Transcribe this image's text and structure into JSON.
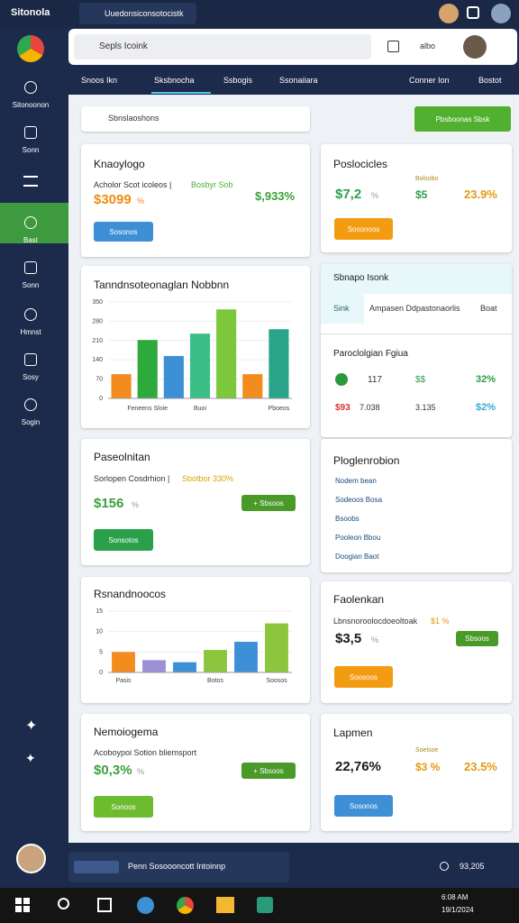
{
  "top_bar": {
    "app": "Sitonola",
    "tab": "Uuedonsiconsotocistk"
  },
  "header": {
    "search": "Sepls Icoink",
    "label": "albo"
  },
  "sidebar": [
    "Sitonoonon",
    "Sonn",
    "Bast",
    "Sonn",
    "Hmnst",
    "Sosy",
    "Sogin"
  ],
  "tabs": [
    "Snoos Ikn",
    "Sksbnocha",
    "Ssbogis",
    "Ssonaiiara",
    "Conner Ion",
    "Bostot"
  ],
  "toolbar": {
    "search": "Sbnslaoshons",
    "button": "Pbsboonas Sbsk"
  },
  "cards": [
    {
      "title": "Knaoylogo",
      "subtitle": "Acholor Scot icoleos |",
      "highlight": "Bosbyr Sob",
      "value": "$3099",
      "unit": "%",
      "side_value": "$,933%",
      "button": "Sosonos"
    },
    {
      "title": "Poslocicles",
      "label": "Bolsobo",
      "values": [
        "$7,2",
        "$5",
        "23.9%"
      ],
      "unit": "%",
      "button": "Sosonoos"
    },
    {
      "type": "bar",
      "title": "Tanndnsoteonaglan Nobbnn",
      "categories": [
        null,
        "Feneens Sloie",
        null,
        "Buoi",
        null,
        null,
        "Pboeos"
      ],
      "values": [
        88,
        212,
        154,
        235,
        323,
        88,
        251
      ],
      "colors": [
        "#f28c1e",
        "#2eaa3c",
        "#3d8fd6",
        "#3cbf86",
        "#7cc73a",
        "#f28c1e",
        "#2aa58a"
      ],
      "ylim": [
        0,
        350
      ],
      "yticks": [
        0,
        70,
        140,
        210,
        280,
        350
      ]
    },
    {
      "header": "Sbnapo Isonk",
      "tabs": [
        "Sink",
        "Ampasen Ddpastonaorlis",
        "Boat"
      ],
      "title": "Paroclolgian Fgiua",
      "rows": [
        [
          "117",
          "$$",
          "32%"
        ],
        [
          "$93",
          "7.038",
          "3.135",
          "$2%"
        ]
      ]
    },
    {
      "title": "Paseolnitan",
      "subtitle": "Sorlopen Cosdrhion |",
      "highlight": "Sbotbor 330%",
      "value": "$156",
      "unit": "%",
      "tag": "+ Sbsoos",
      "button": "Sonsotos"
    },
    {
      "title": "Ploglenrobion",
      "items": [
        "Nodem bean",
        "Sodeoos Bosa",
        "Bsoobs",
        "Pooleon Bbou",
        "Doogian Baot"
      ]
    },
    {
      "type": "bar",
      "title": "Rsnandnoocos",
      "categories": [
        "Pasis",
        null,
        null,
        "Botos",
        null,
        "Soosos"
      ],
      "values": [
        5,
        3,
        2.5,
        5.5,
        7.5,
        12
      ],
      "colors": [
        "#f28c1e",
        "#9b8fd6",
        "#3d8fd6",
        "#8cc63f",
        "#3d8fd6",
        "#8cc63f"
      ],
      "ylim": [
        0,
        15
      ],
      "yticks": [
        0,
        5,
        10,
        15
      ]
    },
    {
      "title": "Faolenkan",
      "subtitle": "Lbnsnoroolocdoeoltoak",
      "highlight": "$1 %",
      "value": "$3,5",
      "unit": "%",
      "tag": "Sbsoos",
      "button": "Soosoos"
    },
    {
      "title": "Nemoiogema",
      "subtitle": "Acoboypoi Sotion bliemsport",
      "value": "$0,3%",
      "unit": "%",
      "tag": "+ Sbsoos",
      "button": "Sonoos"
    },
    {
      "title": "Lapmen",
      "label": "Soelsoe",
      "values": [
        "22,76%",
        "$3 %",
        "23.5%"
      ],
      "button": "Sosonos"
    }
  ],
  "chat": {
    "text": "Penn Sosoooncott Intoinnp",
    "count": "93,205"
  },
  "taskbar": {
    "time": "6:08 AM",
    "date": "19/1/2024"
  }
}
